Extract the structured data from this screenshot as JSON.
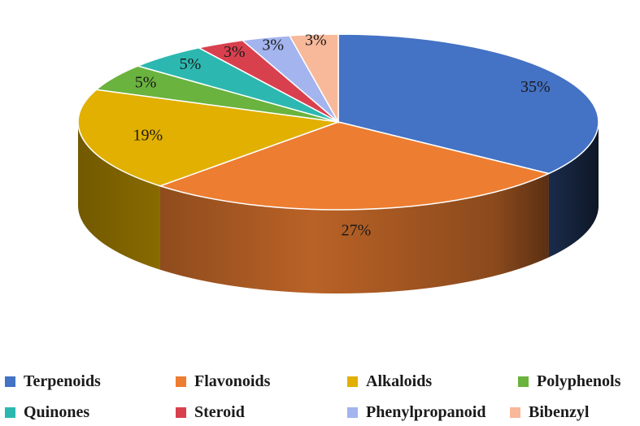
{
  "chart_data": {
    "type": "pie",
    "style": "3d",
    "legend_position": "bottom",
    "label_format": "percent",
    "categories": [
      "Terpenoids",
      "Flavonoids",
      "Alkaloids",
      "Polyphenols",
      "Quinones",
      "Steroid",
      "Phenylpropanoid",
      "Bibenzyl"
    ],
    "values": [
      35,
      27,
      19,
      5,
      5,
      3,
      3,
      3
    ],
    "labels": [
      "35%",
      "27%",
      "19%",
      "5%",
      "5%",
      "3%",
      "3%",
      "3%"
    ],
    "colors": [
      "#4472C4",
      "#ED7D31",
      "#E1B000",
      "#6AB33E",
      "#2CB8B0",
      "#D9404E",
      "#A3B4EE",
      "#F8B89A"
    ]
  }
}
